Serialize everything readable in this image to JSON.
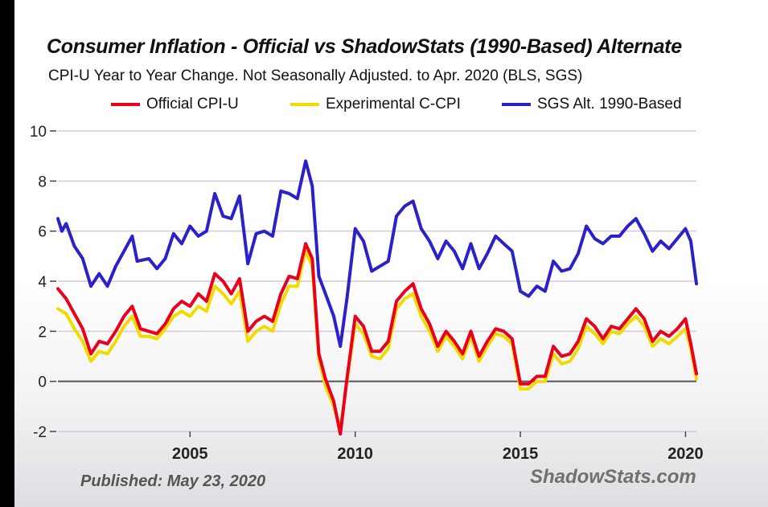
{
  "chart_data": {
    "type": "line",
    "title": "Consumer Inflation - Official vs ShadowStats (1990-Based) Alternate",
    "subtitle": "CPI-U Year to Year Change. Not Seasonally Adjusted. to Apr. 2020  (BLS, SGS)",
    "xlim": [
      2001.0,
      2020.33
    ],
    "ylim": [
      -2,
      10
    ],
    "x_ticks": [
      2005,
      2010,
      2015,
      2020
    ],
    "y_ticks": [
      -2,
      0,
      2,
      4,
      6,
      8,
      10
    ],
    "grid": "horizontal",
    "legend": "top",
    "series": [
      {
        "name": "Official CPI-U",
        "color": "#e8001c",
        "points": [
          [
            2001.0,
            3.7
          ],
          [
            2001.25,
            3.3
          ],
          [
            2001.5,
            2.7
          ],
          [
            2001.75,
            2.1
          ],
          [
            2002.0,
            1.1
          ],
          [
            2002.25,
            1.6
          ],
          [
            2002.5,
            1.5
          ],
          [
            2002.75,
            2.0
          ],
          [
            2003.0,
            2.6
          ],
          [
            2003.25,
            3.0
          ],
          [
            2003.5,
            2.1
          ],
          [
            2003.75,
            2.0
          ],
          [
            2004.0,
            1.9
          ],
          [
            2004.25,
            2.3
          ],
          [
            2004.5,
            2.9
          ],
          [
            2004.75,
            3.2
          ],
          [
            2005.0,
            3.0
          ],
          [
            2005.25,
            3.5
          ],
          [
            2005.5,
            3.2
          ],
          [
            2005.75,
            4.3
          ],
          [
            2006.0,
            4.0
          ],
          [
            2006.25,
            3.5
          ],
          [
            2006.5,
            4.1
          ],
          [
            2006.75,
            2.0
          ],
          [
            2007.0,
            2.4
          ],
          [
            2007.25,
            2.6
          ],
          [
            2007.5,
            2.4
          ],
          [
            2007.75,
            3.5
          ],
          [
            2008.0,
            4.2
          ],
          [
            2008.25,
            4.1
          ],
          [
            2008.5,
            5.5
          ],
          [
            2008.7,
            4.9
          ],
          [
            2008.9,
            1.1
          ],
          [
            2009.1,
            0.1
          ],
          [
            2009.35,
            -0.8
          ],
          [
            2009.55,
            -2.1
          ],
          [
            2009.75,
            0.1
          ],
          [
            2010.0,
            2.6
          ],
          [
            2010.25,
            2.2
          ],
          [
            2010.5,
            1.2
          ],
          [
            2010.75,
            1.2
          ],
          [
            2011.0,
            1.6
          ],
          [
            2011.25,
            3.2
          ],
          [
            2011.5,
            3.6
          ],
          [
            2011.75,
            3.9
          ],
          [
            2012.0,
            2.9
          ],
          [
            2012.25,
            2.3
          ],
          [
            2012.5,
            1.4
          ],
          [
            2012.75,
            2.0
          ],
          [
            2013.0,
            1.6
          ],
          [
            2013.25,
            1.1
          ],
          [
            2013.5,
            2.0
          ],
          [
            2013.75,
            1.0
          ],
          [
            2014.0,
            1.6
          ],
          [
            2014.25,
            2.1
          ],
          [
            2014.5,
            2.0
          ],
          [
            2014.75,
            1.7
          ],
          [
            2015.0,
            -0.1
          ],
          [
            2015.25,
            -0.1
          ],
          [
            2015.5,
            0.2
          ],
          [
            2015.75,
            0.2
          ],
          [
            2016.0,
            1.4
          ],
          [
            2016.25,
            1.0
          ],
          [
            2016.5,
            1.1
          ],
          [
            2016.75,
            1.6
          ],
          [
            2017.0,
            2.5
          ],
          [
            2017.25,
            2.2
          ],
          [
            2017.5,
            1.7
          ],
          [
            2017.75,
            2.2
          ],
          [
            2018.0,
            2.1
          ],
          [
            2018.25,
            2.5
          ],
          [
            2018.5,
            2.9
          ],
          [
            2018.75,
            2.5
          ],
          [
            2019.0,
            1.6
          ],
          [
            2019.25,
            2.0
          ],
          [
            2019.5,
            1.8
          ],
          [
            2019.75,
            2.1
          ],
          [
            2020.0,
            2.5
          ],
          [
            2020.16,
            1.5
          ],
          [
            2020.33,
            0.3
          ]
        ]
      },
      {
        "name": "Experimental C-CPI",
        "color": "#f0dc00",
        "points": [
          [
            2001.0,
            2.9
          ],
          [
            2001.25,
            2.7
          ],
          [
            2001.5,
            2.1
          ],
          [
            2001.75,
            1.6
          ],
          [
            2002.0,
            0.8
          ],
          [
            2002.25,
            1.2
          ],
          [
            2002.5,
            1.1
          ],
          [
            2002.75,
            1.6
          ],
          [
            2003.0,
            2.2
          ],
          [
            2003.25,
            2.6
          ],
          [
            2003.5,
            1.8
          ],
          [
            2003.75,
            1.8
          ],
          [
            2004.0,
            1.7
          ],
          [
            2004.25,
            2.1
          ],
          [
            2004.5,
            2.6
          ],
          [
            2004.75,
            2.8
          ],
          [
            2005.0,
            2.6
          ],
          [
            2005.25,
            3.0
          ],
          [
            2005.5,
            2.8
          ],
          [
            2005.75,
            3.8
          ],
          [
            2006.0,
            3.5
          ],
          [
            2006.25,
            3.1
          ],
          [
            2006.5,
            3.6
          ],
          [
            2006.75,
            1.6
          ],
          [
            2007.0,
            2.0
          ],
          [
            2007.25,
            2.2
          ],
          [
            2007.5,
            2.0
          ],
          [
            2007.75,
            3.1
          ],
          [
            2008.0,
            3.8
          ],
          [
            2008.25,
            3.8
          ],
          [
            2008.5,
            5.2
          ],
          [
            2008.7,
            4.6
          ],
          [
            2008.9,
            0.9
          ],
          [
            2009.1,
            -0.2
          ],
          [
            2009.35,
            -1.0
          ],
          [
            2009.55,
            -1.9
          ],
          [
            2009.75,
            0.0
          ],
          [
            2010.0,
            2.3
          ],
          [
            2010.25,
            1.9
          ],
          [
            2010.5,
            1.0
          ],
          [
            2010.75,
            0.9
          ],
          [
            2011.0,
            1.3
          ],
          [
            2011.25,
            2.9
          ],
          [
            2011.5,
            3.3
          ],
          [
            2011.75,
            3.5
          ],
          [
            2012.0,
            2.6
          ],
          [
            2012.25,
            2.0
          ],
          [
            2012.5,
            1.2
          ],
          [
            2012.75,
            1.8
          ],
          [
            2013.0,
            1.4
          ],
          [
            2013.25,
            0.9
          ],
          [
            2013.5,
            1.8
          ],
          [
            2013.75,
            0.8
          ],
          [
            2014.0,
            1.4
          ],
          [
            2014.25,
            1.9
          ],
          [
            2014.5,
            1.8
          ],
          [
            2014.75,
            1.5
          ],
          [
            2015.0,
            -0.3
          ],
          [
            2015.25,
            -0.3
          ],
          [
            2015.5,
            0.0
          ],
          [
            2015.75,
            0.0
          ],
          [
            2016.0,
            1.1
          ],
          [
            2016.25,
            0.7
          ],
          [
            2016.5,
            0.8
          ],
          [
            2016.75,
            1.3
          ],
          [
            2017.0,
            2.2
          ],
          [
            2017.25,
            1.9
          ],
          [
            2017.5,
            1.5
          ],
          [
            2017.75,
            2.0
          ],
          [
            2018.0,
            1.9
          ],
          [
            2018.25,
            2.3
          ],
          [
            2018.5,
            2.6
          ],
          [
            2018.75,
            2.2
          ],
          [
            2019.0,
            1.4
          ],
          [
            2019.25,
            1.7
          ],
          [
            2019.5,
            1.5
          ],
          [
            2019.75,
            1.8
          ],
          [
            2020.0,
            2.1
          ],
          [
            2020.16,
            1.3
          ],
          [
            2020.33,
            0.1
          ]
        ]
      },
      {
        "name": "SGS  Alt. 1990-Based",
        "color": "#2a22c8",
        "points": [
          [
            2001.0,
            6.5
          ],
          [
            2001.12,
            6.0
          ],
          [
            2001.25,
            6.3
          ],
          [
            2001.5,
            5.4
          ],
          [
            2001.75,
            4.9
          ],
          [
            2002.0,
            3.8
          ],
          [
            2002.25,
            4.3
          ],
          [
            2002.5,
            3.8
          ],
          [
            2002.75,
            4.6
          ],
          [
            2003.0,
            5.2
          ],
          [
            2003.25,
            5.8
          ],
          [
            2003.4,
            4.8
          ],
          [
            2003.75,
            4.9
          ],
          [
            2004.0,
            4.5
          ],
          [
            2004.25,
            4.9
          ],
          [
            2004.5,
            5.9
          ],
          [
            2004.75,
            5.5
          ],
          [
            2005.0,
            6.2
          ],
          [
            2005.25,
            5.8
          ],
          [
            2005.5,
            6.0
          ],
          [
            2005.75,
            7.5
          ],
          [
            2006.0,
            6.6
          ],
          [
            2006.25,
            6.5
          ],
          [
            2006.5,
            7.4
          ],
          [
            2006.75,
            4.7
          ],
          [
            2007.0,
            5.9
          ],
          [
            2007.25,
            6.0
          ],
          [
            2007.5,
            5.8
          ],
          [
            2007.75,
            7.6
          ],
          [
            2008.0,
            7.5
          ],
          [
            2008.25,
            7.3
          ],
          [
            2008.5,
            8.8
          ],
          [
            2008.7,
            7.8
          ],
          [
            2008.9,
            4.2
          ],
          [
            2009.1,
            3.5
          ],
          [
            2009.35,
            2.6
          ],
          [
            2009.55,
            1.4
          ],
          [
            2009.75,
            3.3
          ],
          [
            2010.0,
            6.1
          ],
          [
            2010.25,
            5.6
          ],
          [
            2010.5,
            4.4
          ],
          [
            2010.75,
            4.6
          ],
          [
            2011.0,
            4.8
          ],
          [
            2011.25,
            6.6
          ],
          [
            2011.5,
            7.0
          ],
          [
            2011.75,
            7.2
          ],
          [
            2012.0,
            6.1
          ],
          [
            2012.25,
            5.6
          ],
          [
            2012.5,
            4.9
          ],
          [
            2012.75,
            5.6
          ],
          [
            2013.0,
            5.2
          ],
          [
            2013.25,
            4.5
          ],
          [
            2013.5,
            5.5
          ],
          [
            2013.75,
            4.5
          ],
          [
            2014.0,
            5.1
          ],
          [
            2014.25,
            5.8
          ],
          [
            2014.5,
            5.5
          ],
          [
            2014.75,
            5.2
          ],
          [
            2015.0,
            3.6
          ],
          [
            2015.25,
            3.4
          ],
          [
            2015.5,
            3.8
          ],
          [
            2015.75,
            3.6
          ],
          [
            2016.0,
            4.8
          ],
          [
            2016.25,
            4.4
          ],
          [
            2016.5,
            4.5
          ],
          [
            2016.75,
            5.1
          ],
          [
            2017.0,
            6.2
          ],
          [
            2017.25,
            5.7
          ],
          [
            2017.5,
            5.5
          ],
          [
            2017.75,
            5.8
          ],
          [
            2018.0,
            5.8
          ],
          [
            2018.25,
            6.2
          ],
          [
            2018.5,
            6.5
          ],
          [
            2018.75,
            5.9
          ],
          [
            2019.0,
            5.2
          ],
          [
            2019.25,
            5.6
          ],
          [
            2019.5,
            5.3
          ],
          [
            2019.75,
            5.7
          ],
          [
            2020.0,
            6.1
          ],
          [
            2020.16,
            5.6
          ],
          [
            2020.33,
            3.9
          ]
        ]
      }
    ]
  },
  "footer": {
    "published": "Published: May 23, 2020",
    "brand": "ShadowStats.com"
  }
}
